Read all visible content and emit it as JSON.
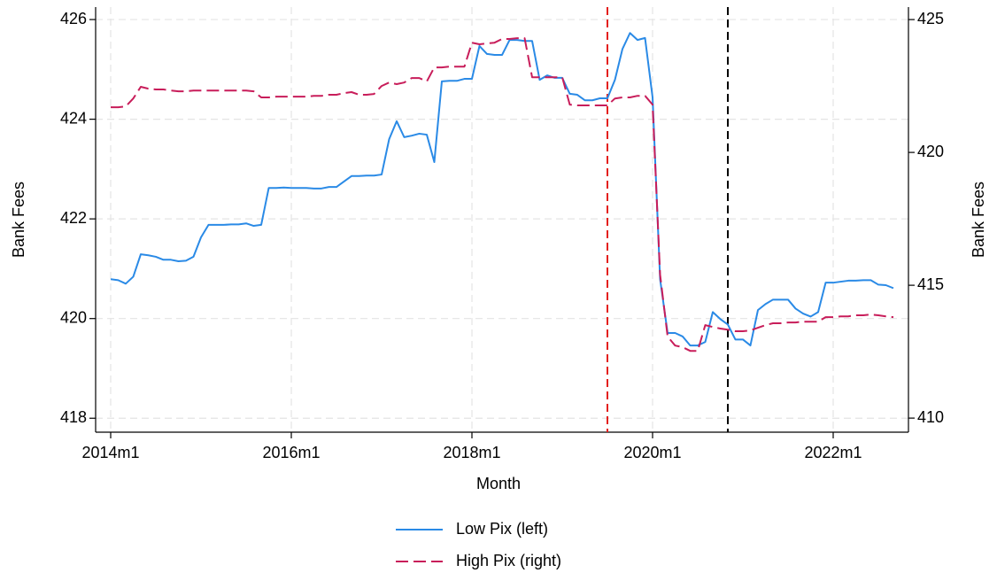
{
  "chart_data": {
    "type": "line",
    "x_label": "Month",
    "y_label": "Bank Fees",
    "y2_label": "Bank Fees",
    "x": [
      "2014m1",
      "2014m2",
      "2014m3",
      "2014m4",
      "2014m5",
      "2014m6",
      "2014m7",
      "2014m8",
      "2014m9",
      "2014m10",
      "2014m11",
      "2014m12",
      "2015m1",
      "2015m2",
      "2015m3",
      "2015m4",
      "2015m5",
      "2015m6",
      "2015m7",
      "2015m8",
      "2015m9",
      "2015m10",
      "2015m11",
      "2015m12",
      "2016m1",
      "2016m2",
      "2016m3",
      "2016m4",
      "2016m5",
      "2016m6",
      "2016m7",
      "2016m8",
      "2016m9",
      "2016m10",
      "2016m11",
      "2016m12",
      "2017m1",
      "2017m2",
      "2017m3",
      "2017m4",
      "2017m5",
      "2017m6",
      "2017m7",
      "2017m8",
      "2017m9",
      "2017m10",
      "2017m11",
      "2017m12",
      "2018m1",
      "2018m2",
      "2018m3",
      "2018m4",
      "2018m5",
      "2018m6",
      "2018m7",
      "2018m8",
      "2018m9",
      "2018m10",
      "2018m11",
      "2018m12",
      "2019m1",
      "2019m2",
      "2019m3",
      "2019m4",
      "2019m5",
      "2019m6",
      "2019m7",
      "2019m8",
      "2019m9",
      "2019m10",
      "2019m11",
      "2019m12",
      "2020m1",
      "2020m2",
      "2020m3",
      "2020m4",
      "2020m5",
      "2020m6",
      "2020m7",
      "2020m8",
      "2020m9",
      "2020m10",
      "2020m11",
      "2020m12",
      "2021m1",
      "2021m2",
      "2021m3",
      "2021m4",
      "2021m5",
      "2021m6",
      "2021m7",
      "2021m8",
      "2021m9",
      "2021m10",
      "2021m11",
      "2021m12",
      "2022m1",
      "2022m2",
      "2022m3",
      "2022m4",
      "2022m5",
      "2022m6",
      "2022m7",
      "2022m8",
      "2022m9"
    ],
    "series": [
      {
        "name": "Low Pix (left)",
        "color": "#2a8ae6",
        "dash": "none",
        "axis": "y",
        "values": [
          420.79,
          420.77,
          420.7,
          420.84,
          421.29,
          421.27,
          421.24,
          421.18,
          421.18,
          421.15,
          421.16,
          421.24,
          421.63,
          421.88,
          421.88,
          421.88,
          421.89,
          421.89,
          421.91,
          421.86,
          421.88,
          422.62,
          422.62,
          422.63,
          422.62,
          422.62,
          422.62,
          422.61,
          422.61,
          422.64,
          422.64,
          422.75,
          422.86,
          422.86,
          422.87,
          422.87,
          422.89,
          423.6,
          423.96,
          423.64,
          423.67,
          423.71,
          423.69,
          423.14,
          424.76,
          424.77,
          424.77,
          424.81,
          424.81,
          425.47,
          425.31,
          425.29,
          425.29,
          425.59,
          425.59,
          425.57,
          425.57,
          424.79,
          424.88,
          424.83,
          424.83,
          424.51,
          424.49,
          424.38,
          424.38,
          424.42,
          424.42,
          424.79,
          425.41,
          425.73,
          425.59,
          425.63,
          424.44,
          420.79,
          419.71,
          419.71,
          419.64,
          419.46,
          419.46,
          419.53,
          420.13,
          419.99,
          419.88,
          419.58,
          419.58,
          419.46,
          420.17,
          420.29,
          420.38,
          420.38,
          420.38,
          420.2,
          420.1,
          420.04,
          420.13,
          420.72,
          420.72,
          420.74,
          420.76,
          420.76,
          420.77,
          420.77,
          420.68,
          420.67,
          420.61
        ]
      },
      {
        "name": "High Pix (right)",
        "color": "#c81d5a",
        "dash": "14 6",
        "axis": "y2",
        "values": [
          421.7,
          421.7,
          421.73,
          422.03,
          422.47,
          422.4,
          422.37,
          422.37,
          422.33,
          422.3,
          422.3,
          422.33,
          422.33,
          422.33,
          422.33,
          422.33,
          422.33,
          422.33,
          422.33,
          422.3,
          422.07,
          422.07,
          422.1,
          422.1,
          422.1,
          422.1,
          422.1,
          422.13,
          422.13,
          422.17,
          422.17,
          422.23,
          422.27,
          422.17,
          422.17,
          422.2,
          422.5,
          422.63,
          422.57,
          422.63,
          422.8,
          422.8,
          422.67,
          423.2,
          423.2,
          423.23,
          423.23,
          423.23,
          424.13,
          424.07,
          424.1,
          424.13,
          424.27,
          424.27,
          424.3,
          424.3,
          422.83,
          422.83,
          422.83,
          422.83,
          422.83,
          421.8,
          421.77,
          421.77,
          421.77,
          421.77,
          421.77,
          422.03,
          422.07,
          422.07,
          422.13,
          422.13,
          421.8,
          415.4,
          413.07,
          412.73,
          412.67,
          412.53,
          412.53,
          413.5,
          413.43,
          413.37,
          413.33,
          413.27,
          413.27,
          413.3,
          413.4,
          413.5,
          413.57,
          413.57,
          413.6,
          413.6,
          413.63,
          413.63,
          413.63,
          413.8,
          413.8,
          413.83,
          413.83,
          413.87,
          413.87,
          413.9,
          413.87,
          413.83,
          413.8
        ]
      }
    ],
    "vlines": [
      {
        "x": "2019m7",
        "color": "#e3201e"
      },
      {
        "x": "2020m11",
        "color": "#000000"
      }
    ],
    "xlim": [
      "2013m11",
      "2022m11"
    ],
    "xticks": [
      "2014m1",
      "2016m1",
      "2018m1",
      "2020m1",
      "2022m1"
    ],
    "ylim": [
      417.72,
      426.25
    ],
    "yticks": [
      418,
      420,
      422,
      424,
      426
    ],
    "y2lim": [
      409.47,
      425.47
    ],
    "y2ticks": [
      410,
      415,
      420,
      425
    ],
    "grid": true,
    "legend": "bottom"
  }
}
